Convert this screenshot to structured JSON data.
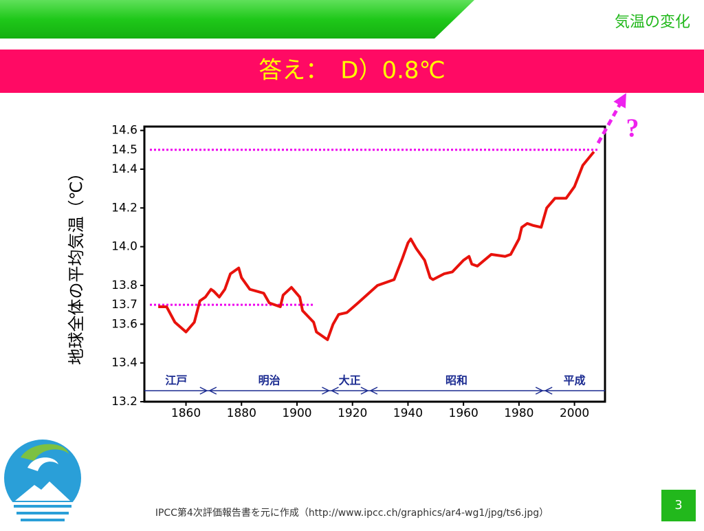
{
  "header": {
    "title": "気温の変化"
  },
  "answer": "答え：　D）0.8℃",
  "chart_data": {
    "type": "line",
    "ylabel": "地球全体の平均気温（℃）",
    "x": [
      1850,
      1853,
      1856,
      1860,
      1863,
      1865,
      1867,
      1869,
      1870,
      1872,
      1874,
      1876,
      1879,
      1880,
      1883,
      1888,
      1890,
      1894,
      1895,
      1898,
      1901,
      1902,
      1906,
      1907,
      1911,
      1913,
      1915,
      1918,
      1922,
      1929,
      1935,
      1938,
      1940,
      1941,
      1943,
      1946,
      1948,
      1949,
      1953,
      1956,
      1960,
      1962,
      1963,
      1965,
      1970,
      1975,
      1977,
      1980,
      1981,
      1983,
      1985,
      1988,
      1990,
      1993,
      1997,
      2000,
      2003,
      2007
    ],
    "series": [
      {
        "color": "#e8120c",
        "values": [
          13.69,
          13.69,
          13.61,
          13.56,
          13.61,
          13.72,
          13.74,
          13.78,
          13.77,
          13.74,
          13.78,
          13.86,
          13.89,
          13.84,
          13.78,
          13.76,
          13.71,
          13.69,
          13.75,
          13.79,
          13.74,
          13.67,
          13.61,
          13.56,
          13.52,
          13.6,
          13.65,
          13.66,
          13.71,
          13.8,
          13.83,
          13.94,
          14.02,
          14.04,
          13.99,
          13.93,
          13.84,
          13.83,
          13.86,
          13.87,
          13.93,
          13.95,
          13.91,
          13.9,
          13.96,
          13.95,
          13.96,
          14.04,
          14.1,
          14.12,
          14.11,
          14.1,
          14.2,
          14.25,
          14.25,
          14.31,
          14.42,
          14.49
        ]
      }
    ],
    "xlim": [
      1845,
      2011
    ],
    "ylim": [
      13.2,
      14.62
    ],
    "xticks": [
      1860,
      1880,
      1900,
      1920,
      1940,
      1960,
      1980,
      2000
    ],
    "yticks": [
      13.2,
      13.4,
      13.6,
      13.8,
      {
        "value": 14.0,
        "label": "14.0"
      },
      14.2,
      14.4,
      14.6
    ],
    "reference_lines": [
      {
        "value": 14.5,
        "color": "#ee00ee"
      },
      {
        "value": 13.7,
        "color": "#ee00ee",
        "until": 1906
      }
    ],
    "eras": {
      "names": [
        "江戸",
        "明治",
        "大正",
        "昭和",
        "平成"
      ],
      "boundaries": [
        1868,
        1912,
        1926,
        1989
      ]
    },
    "question": "?"
  },
  "footer": "IPCC第4次評価報告書を元に作成（http://www.ipcc.ch/graphics/ar4-wg1/jpg/ts6.jpg）",
  "page_number": "3"
}
